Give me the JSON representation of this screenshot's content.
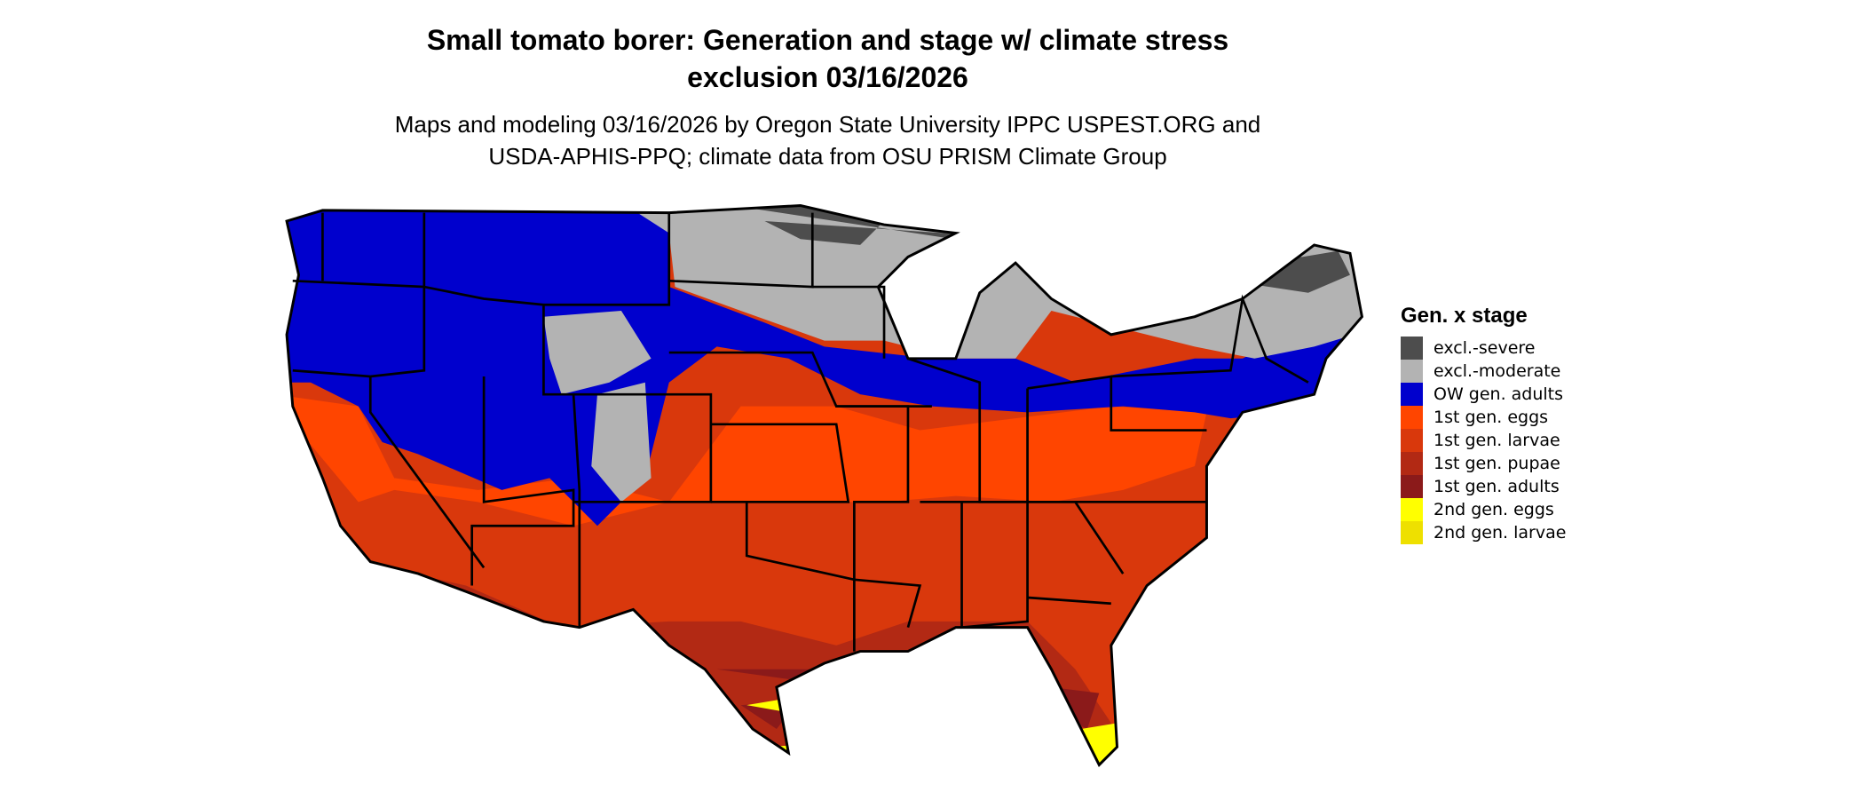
{
  "title": {
    "line1": "Small tomato borer: Generation and stage w/ climate stress",
    "line2": "exclusion 03/16/2026"
  },
  "subtitle": {
    "line1": "Maps and modeling 03/16/2026 by Oregon State University IPPC USPEST.ORG and",
    "line2": "USDA-APHIS-PPQ; climate data from OSU PRISM Climate Group"
  },
  "legend": {
    "title": "Gen. x stage",
    "items": [
      {
        "label": "excl.-severe",
        "color": "#4d4d4d"
      },
      {
        "label": "excl.-moderate",
        "color": "#b3b3b3"
      },
      {
        "label": "OW gen. adults",
        "color": "#0000cd"
      },
      {
        "label": "1st gen. eggs",
        "color": "#ff4500"
      },
      {
        "label": "1st gen. larvae",
        "color": "#d9380c"
      },
      {
        "label": "1st gen. pupae",
        "color": "#b22914"
      },
      {
        "label": "1st gen. adults",
        "color": "#8b1a1a"
      },
      {
        "label": "2nd gen. eggs",
        "color": "#ffff00"
      },
      {
        "label": "2nd gen. larvae",
        "color": "#eee000"
      }
    ]
  },
  "map": {
    "region": "Conterminous United States",
    "border_color": "#000000"
  }
}
